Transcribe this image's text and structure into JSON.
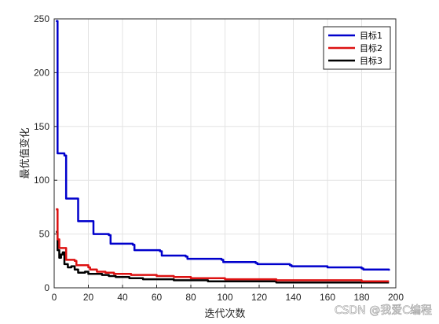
{
  "chart_data": {
    "type": "line",
    "xlabel": "迭代次数",
    "ylabel": "最优值变化",
    "xlim": [
      0,
      200
    ],
    "ylim": [
      0,
      250
    ],
    "xticks": [
      0,
      20,
      40,
      60,
      80,
      100,
      120,
      140,
      160,
      180,
      200
    ],
    "yticks": [
      0,
      50,
      100,
      150,
      200,
      250
    ],
    "grid": true,
    "legend_position": "top-right",
    "series": [
      {
        "name": "目标1",
        "color": "#0000cc",
        "x": [
          1,
          2,
          6,
          7,
          13,
          14,
          22,
          23,
          32,
          33,
          46,
          47,
          62,
          63,
          77,
          78,
          98,
          99,
          118,
          119,
          138,
          139,
          160,
          161,
          180,
          181,
          196
        ],
        "y": [
          248,
          125,
          123,
          83,
          83,
          62,
          62,
          50,
          49,
          41,
          40,
          35,
          34,
          30,
          29,
          27,
          26,
          24,
          23,
          22,
          21,
          20,
          19,
          19,
          18,
          17,
          16
        ]
      },
      {
        "name": "目标2",
        "color": "#dd1111",
        "x": [
          1,
          2,
          3,
          6,
          7,
          12,
          13,
          20,
          21,
          25,
          30,
          35,
          40,
          45,
          50,
          60,
          70,
          80,
          90,
          100,
          110,
          120,
          130,
          140,
          150,
          160,
          170,
          180,
          196
        ],
        "y": [
          73,
          45,
          37,
          37,
          26,
          25,
          21,
          19,
          17,
          15,
          14,
          13,
          13,
          12,
          12,
          11,
          10,
          9,
          9,
          8,
          8,
          8,
          7,
          7,
          7,
          7,
          7,
          6,
          6
        ]
      },
      {
        "name": "目标3",
        "color": "#000000",
        "x": [
          1,
          2,
          3,
          4,
          5,
          6,
          8,
          10,
          12,
          14,
          16,
          18,
          20,
          24,
          28,
          32,
          36,
          40,
          44,
          48,
          52,
          56,
          60,
          70,
          80,
          90,
          100,
          110,
          120,
          130,
          140,
          150,
          160,
          170,
          180,
          196
        ],
        "y": [
          52,
          35,
          28,
          31,
          33,
          22,
          19,
          20,
          17,
          14,
          14,
          15,
          13,
          13,
          12,
          11,
          10,
          10,
          9,
          9,
          8,
          8,
          8,
          7,
          7,
          6,
          6,
          6,
          6,
          5,
          5,
          5,
          5,
          5,
          5,
          5
        ]
      }
    ]
  },
  "watermark": "CSDN @我爱C编程"
}
